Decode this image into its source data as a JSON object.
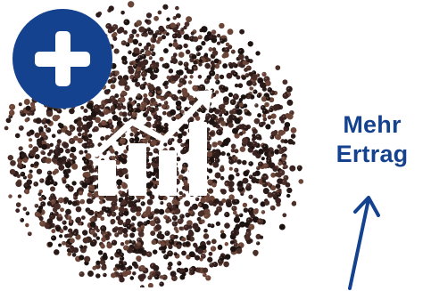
{
  "headline": {
    "line1": "Mehr",
    "line2": "Ertrag"
  },
  "colors": {
    "brand_blue": "#15428f",
    "seed_dark": "#2a1a18",
    "seed_mid": "#4a2e28",
    "seed_light": "#6b4538",
    "icon_white": "#ffffff",
    "background": "#ffffff"
  },
  "icons": {
    "badge": "plus-icon",
    "overlay": "rising-bar-chart-icon",
    "pointer": "arrow-up-icon"
  }
}
